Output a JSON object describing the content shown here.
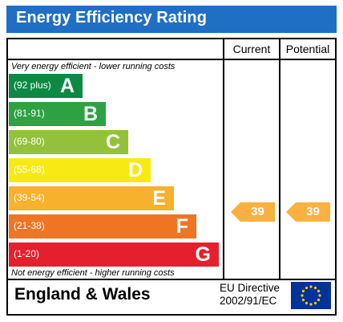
{
  "title": "Energy Efficiency Rating",
  "columns": {
    "current": "Current",
    "potential": "Potential"
  },
  "top_note": "Very energy efficient - lower running costs",
  "bottom_note": "Not energy efficient - higher running costs",
  "bands": [
    {
      "range": "(92 plus)",
      "letter": "A",
      "color": "#0c8a44"
    },
    {
      "range": "(81-91)",
      "letter": "B",
      "color": "#2ea143"
    },
    {
      "range": "(69-80)",
      "letter": "C",
      "color": "#94c13b"
    },
    {
      "range": "(55-68)",
      "letter": "D",
      "color": "#f7ea12"
    },
    {
      "range": "(39-54)",
      "letter": "E",
      "color": "#f8b12c"
    },
    {
      "range": "(21-38)",
      "letter": "F",
      "color": "#ef7524"
    },
    {
      "range": "(1-20)",
      "letter": "G",
      "color": "#e4202e"
    }
  ],
  "current_rating": "39",
  "potential_rating": "39",
  "rating_color": "#fbb040",
  "footer": {
    "country": "England & Wales",
    "directive_line1": "EU Directive",
    "directive_line2": "2002/91/EC"
  },
  "eu_flag_icon": "eu-flag-icon"
}
